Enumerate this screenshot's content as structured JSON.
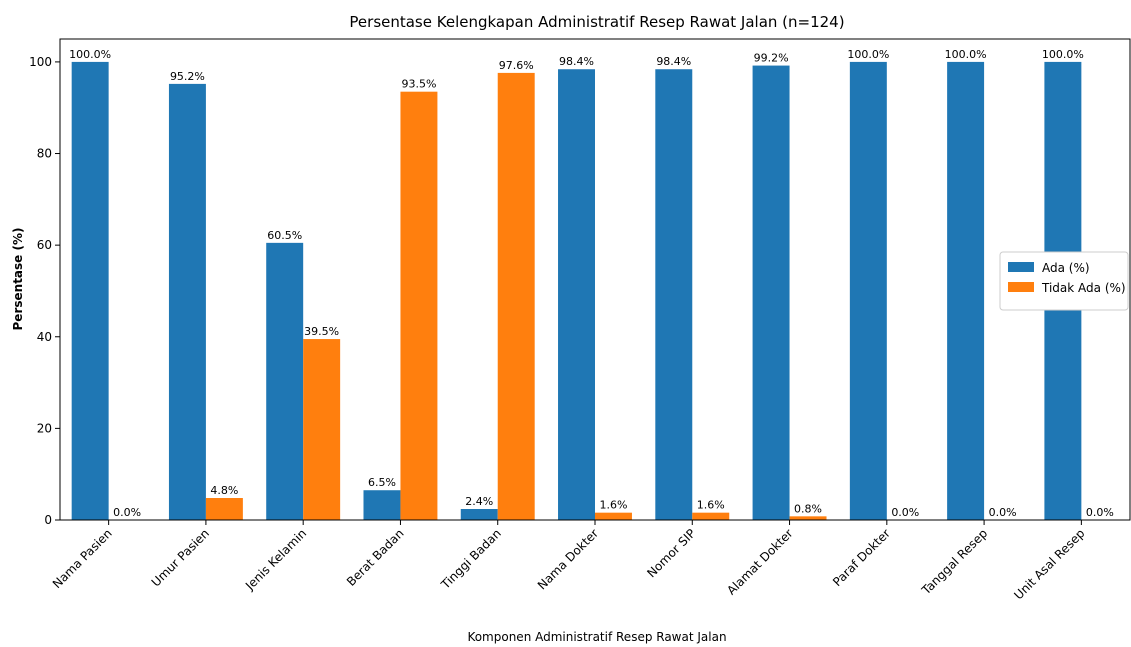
{
  "chart_data": {
    "type": "bar",
    "title": "Persentase Kelengkapan Administratif Resep Rawat Jalan (n=124)",
    "xlabel": "Komponen Administratif Resep Rawat Jalan",
    "ylabel": "Persentase (%)",
    "ylim": [
      0,
      105
    ],
    "yticks": [
      0,
      20,
      40,
      60,
      80,
      100
    ],
    "grid": false,
    "legend_position": "center-right",
    "categories": [
      "Nama Pasien",
      "Umur Pasien",
      "Jenis Kelamin",
      "Berat Badan",
      "Tinggi Badan",
      "Nama Dokter",
      "Nomor SIP",
      "Alamat Dokter",
      "Paraf Dokter",
      "Tanggal Resep",
      "Unit Asal Resep"
    ],
    "series": [
      {
        "name": "Ada (%)",
        "color": "#1f77b4",
        "values": [
          100.0,
          95.2,
          60.5,
          6.5,
          2.4,
          98.4,
          98.4,
          99.2,
          100.0,
          100.0,
          100.0
        ],
        "labels": [
          "100.0%",
          "95.2%",
          "60.5%",
          "6.5%",
          "2.4%",
          "98.4%",
          "98.4%",
          "99.2%",
          "100.0%",
          "100.0%",
          "100.0%"
        ]
      },
      {
        "name": "Tidak Ada (%)",
        "color": "#ff7f0e",
        "values": [
          0.0,
          4.8,
          39.5,
          93.5,
          97.6,
          1.6,
          1.6,
          0.8,
          0.0,
          0.0,
          0.0
        ],
        "labels": [
          "0.0%",
          "4.8%",
          "39.5%",
          "93.5%",
          "97.6%",
          "1.6%",
          "1.6%",
          "0.8%",
          "0.0%",
          "0.0%",
          "0.0%"
        ]
      }
    ]
  }
}
